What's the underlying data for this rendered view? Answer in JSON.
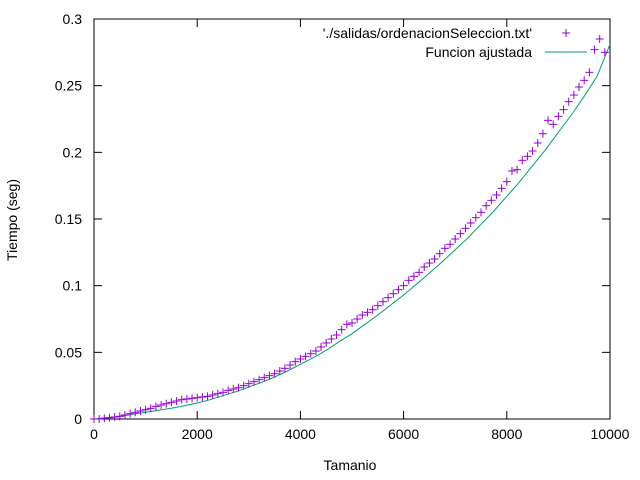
{
  "chart_data": {
    "type": "scatter",
    "title": "",
    "xlabel": "Tamanio",
    "ylabel": "Tiempo (seg)",
    "xlim": [
      0,
      10000
    ],
    "ylim": [
      0,
      0.3
    ],
    "x_ticks": [
      0,
      2000,
      4000,
      6000,
      8000,
      10000
    ],
    "x_tick_labels": [
      "0",
      "2000",
      "4000",
      "6000",
      "8000",
      "10000"
    ],
    "y_ticks": [
      0,
      0.05,
      0.1,
      0.15,
      0.2,
      0.25,
      0.3
    ],
    "y_tick_labels": [
      "0",
      "0.05",
      "0.1",
      "0.15",
      "0.2",
      "0.25",
      "0.3"
    ],
    "grid": false,
    "legend_position": "top-right",
    "series": [
      {
        "name": "'./salidas/ordenacionSeleccion.txt'",
        "kind": "points",
        "marker": "+",
        "color": "#9400d3",
        "x": [
          0,
          100,
          200,
          300,
          400,
          500,
          600,
          700,
          800,
          900,
          1000,
          1100,
          1200,
          1300,
          1400,
          1500,
          1600,
          1700,
          1800,
          1900,
          2000,
          2100,
          2200,
          2300,
          2400,
          2500,
          2600,
          2700,
          2800,
          2900,
          3000,
          3100,
          3200,
          3300,
          3400,
          3500,
          3600,
          3700,
          3800,
          3900,
          4000,
          4100,
          4200,
          4300,
          4400,
          4500,
          4600,
          4700,
          4800,
          4900,
          5000,
          5100,
          5200,
          5300,
          5400,
          5500,
          5600,
          5700,
          5800,
          5900,
          6000,
          6100,
          6200,
          6300,
          6400,
          6500,
          6600,
          6700,
          6800,
          6900,
          7000,
          7100,
          7200,
          7300,
          7400,
          7500,
          7600,
          7700,
          7800,
          7900,
          8000,
          8100,
          8200,
          8300,
          8400,
          8500,
          8600,
          8700,
          8800,
          8900,
          9000,
          9100,
          9200,
          9300,
          9400,
          9500,
          9600,
          9700,
          9800,
          9900
        ],
        "y": [
          0,
          0,
          0.0005,
          0.001,
          0.0015,
          0.002,
          0.003,
          0.004,
          0.005,
          0.006,
          0.007,
          0.008,
          0.0095,
          0.0105,
          0.0115,
          0.0125,
          0.0135,
          0.0145,
          0.015,
          0.0155,
          0.016,
          0.0165,
          0.017,
          0.018,
          0.019,
          0.02,
          0.0215,
          0.0225,
          0.0235,
          0.025,
          0.0265,
          0.028,
          0.0295,
          0.031,
          0.0325,
          0.034,
          0.036,
          0.038,
          0.0405,
          0.043,
          0.045,
          0.047,
          0.049,
          0.051,
          0.054,
          0.057,
          0.06,
          0.063,
          0.067,
          0.071,
          0.072,
          0.075,
          0.078,
          0.08,
          0.082,
          0.085,
          0.088,
          0.091,
          0.094,
          0.097,
          0.1,
          0.104,
          0.107,
          0.11,
          0.114,
          0.117,
          0.12,
          0.124,
          0.128,
          0.131,
          0.135,
          0.139,
          0.143,
          0.147,
          0.151,
          0.155,
          0.16,
          0.164,
          0.168,
          0.173,
          0.178,
          0.186,
          0.187,
          0.194,
          0.197,
          0.201,
          0.207,
          0.214,
          0.224,
          0.221,
          0.227,
          0.232,
          0.238,
          0.243,
          0.249,
          0.254,
          0.26,
          0.277,
          0.285,
          0.275
        ]
      },
      {
        "name": "Funcion ajustada",
        "kind": "line",
        "color": "#009e73",
        "x": [
          0,
          250,
          500,
          750,
          1000,
          1250,
          1500,
          1750,
          2000,
          2250,
          2500,
          2750,
          3000,
          3250,
          3500,
          3750,
          4000,
          4250,
          4500,
          4750,
          5000,
          5250,
          5500,
          5750,
          6000,
          6250,
          6500,
          6750,
          7000,
          7250,
          7500,
          7750,
          8000,
          8250,
          8500,
          8750,
          9000,
          9250,
          9500,
          9750,
          10000
        ],
        "y": [
          0,
          0.001,
          0.002,
          0.0035,
          0.005,
          0.0065,
          0.008,
          0.01,
          0.012,
          0.0145,
          0.0175,
          0.0205,
          0.024,
          0.0275,
          0.0315,
          0.036,
          0.041,
          0.046,
          0.0515,
          0.058,
          0.064,
          0.071,
          0.078,
          0.0855,
          0.093,
          0.101,
          0.1095,
          0.118,
          0.127,
          0.136,
          0.146,
          0.156,
          0.167,
          0.178,
          0.19,
          0.202,
          0.215,
          0.228,
          0.242,
          0.257,
          0.281
        ]
      }
    ]
  }
}
